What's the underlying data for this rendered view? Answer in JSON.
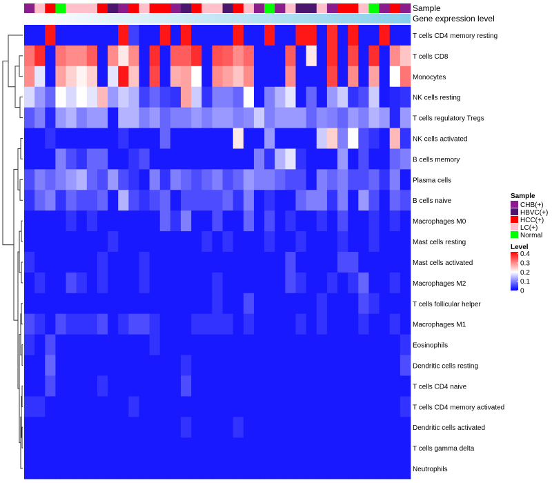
{
  "chart_data": {
    "type": "heatmap",
    "title": "",
    "annotation_tracks": [
      "Sample",
      "Gene expression level"
    ],
    "rows": [
      "T cells CD4 memory resting",
      "T cells CD8",
      "Monocytes",
      "NK cells resting",
      "T cells regulatory  Tregs",
      "NK cells activated",
      "B cells memory",
      "Plasma cells",
      "B cells naive",
      "Macrophages M0",
      "Mast cells resting",
      "Mast cells activated",
      "Macrophages M2",
      "T cells follicular helper",
      "Macrophages M1",
      "Eosinophils",
      "Dendritic cells resting",
      "T cells CD4 naive",
      "T cells CD4 memory activated",
      "Dendritic cells activated",
      "T cells gamma delta",
      "Neutrophils"
    ],
    "sample_groups": [
      "CHB(+)",
      "LC(+)",
      "HCC(+)",
      "Normal",
      "LC(+)",
      "LC(+)",
      "LC(+)",
      "HCC(+)",
      "HBVC(+)",
      "CHB(+)",
      "HCC(+)",
      "LC(+)",
      "HCC(+)",
      "HCC(+)",
      "CHB(+)",
      "HBVC(+)",
      "HCC(+)",
      "LC(+)",
      "LC(+)",
      "HBVC(+)",
      "HCC(+)",
      "LC(+)",
      "CHB(+)",
      "Normal",
      "CHB(+)",
      "LC(+)",
      "HBVC(+)",
      "HBVC(+)",
      "LC(+)",
      "CHB(+)",
      "HCC(+)",
      "HCC(+)",
      "LC(+)",
      "Normal",
      "CHB(+)",
      "HCC(+)",
      "CHB(+)"
    ],
    "values": [
      [
        0.02,
        0.02,
        0.4,
        0.02,
        0.02,
        0.02,
        0.02,
        0.02,
        0.02,
        0.4,
        0.05,
        0.02,
        0.02,
        0.4,
        0.02,
        0.4,
        0.02,
        0.02,
        0.02,
        0.02,
        0.4,
        0.02,
        0.02,
        0.4,
        0.02,
        0.02,
        0.4,
        0.4,
        0.02,
        0.38,
        0.02,
        0.4,
        0.02,
        0.02,
        0.4,
        0.02,
        0.02
      ],
      [
        0.32,
        0.38,
        0.02,
        0.32,
        0.3,
        0.3,
        0.34,
        0.02,
        0.3,
        0.22,
        0.3,
        0.02,
        0.38,
        0.02,
        0.34,
        0.34,
        0.38,
        0.02,
        0.35,
        0.34,
        0.3,
        0.33,
        0.02,
        0.02,
        0.02,
        0.34,
        0.02,
        0.22,
        0.02,
        0.38,
        0.02,
        0.36,
        0.02,
        0.38,
        0.02,
        0.3,
        0.25
      ],
      [
        0.3,
        0.18,
        0.02,
        0.28,
        0.24,
        0.21,
        0.24,
        0.02,
        0.18,
        0.4,
        0.25,
        0.02,
        0.36,
        0.02,
        0.27,
        0.28,
        0.2,
        0.02,
        0.3,
        0.28,
        0.25,
        0.3,
        0.02,
        0.02,
        0.02,
        0.3,
        0.02,
        0.02,
        0.02,
        0.36,
        0.02,
        0.3,
        0.02,
        0.28,
        0.02,
        0.2,
        0.32
      ],
      [
        0.17,
        0.12,
        0.08,
        0.2,
        0.17,
        0.2,
        0.18,
        0.26,
        0.12,
        0.16,
        0.14,
        0.05,
        0.08,
        0.05,
        0.04,
        0.28,
        0.16,
        0.04,
        0.1,
        0.1,
        0.08,
        0.2,
        0.02,
        0.1,
        0.14,
        0.18,
        0.02,
        0.08,
        0.02,
        0.12,
        0.16,
        0.04,
        0.06,
        0.16,
        0.02,
        0.03,
        0.04
      ],
      [
        0.07,
        0.1,
        0.03,
        0.12,
        0.14,
        0.1,
        0.12,
        0.12,
        0.02,
        0.14,
        0.14,
        0.1,
        0.12,
        0.08,
        0.1,
        0.1,
        0.12,
        0.1,
        0.12,
        0.12,
        0.1,
        0.11,
        0.16,
        0.1,
        0.12,
        0.12,
        0.12,
        0.08,
        0.11,
        0.1,
        0.08,
        0.12,
        0.1,
        0.14,
        0.12,
        0.03,
        0.12
      ],
      [
        0.02,
        0.02,
        0.04,
        0.02,
        0.02,
        0.02,
        0.02,
        0.02,
        0.02,
        0.04,
        0.02,
        0.02,
        0.02,
        0.08,
        0.02,
        0.02,
        0.02,
        0.02,
        0.02,
        0.02,
        0.22,
        0.02,
        0.02,
        0.12,
        0.02,
        0.02,
        0.02,
        0.02,
        0.16,
        0.24,
        0.1,
        0.2,
        0.06,
        0.04,
        0.02,
        0.26,
        0.04
      ],
      [
        0.02,
        0.02,
        0.02,
        0.1,
        0.06,
        0.04,
        0.08,
        0.08,
        0.02,
        0.02,
        0.04,
        0.06,
        0.02,
        0.02,
        0.02,
        0.02,
        0.02,
        0.02,
        0.02,
        0.02,
        0.02,
        0.02,
        0.1,
        0.04,
        0.14,
        0.18,
        0.04,
        0.02,
        0.02,
        0.02,
        0.12,
        0.02,
        0.06,
        0.02,
        0.02,
        0.08,
        0.1
      ],
      [
        0.06,
        0.1,
        0.08,
        0.1,
        0.12,
        0.14,
        0.08,
        0.06,
        0.12,
        0.06,
        0.04,
        0.02,
        0.1,
        0.04,
        0.1,
        0.08,
        0.06,
        0.08,
        0.1,
        0.06,
        0.08,
        0.12,
        0.1,
        0.1,
        0.08,
        0.06,
        0.06,
        0.02,
        0.1,
        0.08,
        0.1,
        0.06,
        0.06,
        0.08,
        0.04,
        0.1,
        0.02
      ],
      [
        0.04,
        0.08,
        0.1,
        0.04,
        0.08,
        0.06,
        0.06,
        0.08,
        0.02,
        0.14,
        0.06,
        0.04,
        0.06,
        0.08,
        0.02,
        0.06,
        0.06,
        0.06,
        0.06,
        0.08,
        0.04,
        0.1,
        0.02,
        0.04,
        0.02,
        0.02,
        0.08,
        0.1,
        0.1,
        0.04,
        0.1,
        0.02,
        0.12,
        0.06,
        0.02,
        0.08,
        0.06
      ],
      [
        0.02,
        0.02,
        0.02,
        0.02,
        0.04,
        0.02,
        0.04,
        0.02,
        0.02,
        0.02,
        0.02,
        0.02,
        0.02,
        0.08,
        0.04,
        0.1,
        0.02,
        0.02,
        0.06,
        0.02,
        0.02,
        0.08,
        0.02,
        0.06,
        0.02,
        0.04,
        0.02,
        0.02,
        0.04,
        0.02,
        0.06,
        0.02,
        0.02,
        0.04,
        0.02,
        0.04,
        0.02
      ],
      [
        0.02,
        0.02,
        0.02,
        0.02,
        0.02,
        0.02,
        0.02,
        0.02,
        0.04,
        0.02,
        0.02,
        0.02,
        0.02,
        0.02,
        0.02,
        0.02,
        0.02,
        0.04,
        0.02,
        0.04,
        0.02,
        0.02,
        0.02,
        0.04,
        0.02,
        0.02,
        0.04,
        0.02,
        0.02,
        0.02,
        0.04,
        0.02,
        0.02,
        0.04,
        0.02,
        0.02,
        0.02
      ],
      [
        0.04,
        0.02,
        0.02,
        0.02,
        0.02,
        0.02,
        0.02,
        0.04,
        0.02,
        0.02,
        0.02,
        0.04,
        0.02,
        0.02,
        0.02,
        0.02,
        0.02,
        0.02,
        0.02,
        0.02,
        0.02,
        0.02,
        0.02,
        0.02,
        0.02,
        0.06,
        0.02,
        0.02,
        0.02,
        0.02,
        0.06,
        0.06,
        0.02,
        0.02,
        0.02,
        0.02,
        0.02
      ],
      [
        0.02,
        0.04,
        0.02,
        0.02,
        0.06,
        0.04,
        0.02,
        0.04,
        0.02,
        0.02,
        0.02,
        0.04,
        0.02,
        0.02,
        0.02,
        0.02,
        0.02,
        0.02,
        0.04,
        0.02,
        0.02,
        0.02,
        0.02,
        0.02,
        0.02,
        0.06,
        0.04,
        0.02,
        0.02,
        0.04,
        0.02,
        0.04,
        0.08,
        0.02,
        0.02,
        0.04,
        0.02
      ],
      [
        0.02,
        0.02,
        0.02,
        0.02,
        0.02,
        0.02,
        0.02,
        0.02,
        0.02,
        0.02,
        0.02,
        0.02,
        0.02,
        0.02,
        0.02,
        0.02,
        0.02,
        0.02,
        0.04,
        0.02,
        0.02,
        0.06,
        0.02,
        0.02,
        0.02,
        0.02,
        0.02,
        0.02,
        0.04,
        0.02,
        0.02,
        0.02,
        0.06,
        0.04,
        0.02,
        0.02,
        0.02
      ],
      [
        0.06,
        0.04,
        0.02,
        0.06,
        0.04,
        0.04,
        0.04,
        0.06,
        0.02,
        0.04,
        0.06,
        0.06,
        0.04,
        0.02,
        0.02,
        0.02,
        0.04,
        0.04,
        0.04,
        0.04,
        0.02,
        0.04,
        0.02,
        0.02,
        0.02,
        0.02,
        0.04,
        0.02,
        0.04,
        0.02,
        0.02,
        0.02,
        0.04,
        0.02,
        0.02,
        0.04,
        0.02
      ],
      [
        0.04,
        0.02,
        0.06,
        0.02,
        0.02,
        0.02,
        0.02,
        0.02,
        0.02,
        0.02,
        0.02,
        0.02,
        0.04,
        0.02,
        0.02,
        0.02,
        0.02,
        0.02,
        0.02,
        0.02,
        0.02,
        0.02,
        0.02,
        0.02,
        0.02,
        0.02,
        0.02,
        0.02,
        0.02,
        0.02,
        0.02,
        0.02,
        0.02,
        0.02,
        0.02,
        0.02,
        0.04
      ],
      [
        0.02,
        0.02,
        0.08,
        0.02,
        0.02,
        0.02,
        0.02,
        0.02,
        0.02,
        0.02,
        0.02,
        0.02,
        0.02,
        0.02,
        0.02,
        0.04,
        0.02,
        0.02,
        0.02,
        0.02,
        0.02,
        0.02,
        0.02,
        0.02,
        0.02,
        0.02,
        0.02,
        0.02,
        0.02,
        0.02,
        0.02,
        0.02,
        0.02,
        0.02,
        0.02,
        0.02,
        0.06
      ],
      [
        0.02,
        0.02,
        0.06,
        0.02,
        0.02,
        0.02,
        0.02,
        0.04,
        0.02,
        0.02,
        0.02,
        0.02,
        0.02,
        0.02,
        0.02,
        0.06,
        0.02,
        0.02,
        0.02,
        0.02,
        0.02,
        0.02,
        0.02,
        0.02,
        0.02,
        0.02,
        0.02,
        0.02,
        0.02,
        0.02,
        0.02,
        0.02,
        0.02,
        0.02,
        0.02,
        0.02,
        0.02
      ],
      [
        0.04,
        0.04,
        0.02,
        0.02,
        0.02,
        0.02,
        0.02,
        0.02,
        0.02,
        0.02,
        0.04,
        0.02,
        0.02,
        0.02,
        0.02,
        0.02,
        0.02,
        0.02,
        0.02,
        0.02,
        0.02,
        0.02,
        0.02,
        0.02,
        0.02,
        0.02,
        0.02,
        0.02,
        0.02,
        0.02,
        0.02,
        0.02,
        0.02,
        0.02,
        0.02,
        0.02,
        0.04
      ],
      [
        0.02,
        0.02,
        0.02,
        0.02,
        0.02,
        0.02,
        0.02,
        0.02,
        0.02,
        0.02,
        0.02,
        0.02,
        0.02,
        0.02,
        0.02,
        0.04,
        0.02,
        0.02,
        0.02,
        0.02,
        0.04,
        0.02,
        0.02,
        0.02,
        0.02,
        0.02,
        0.02,
        0.02,
        0.02,
        0.02,
        0.02,
        0.02,
        0.02,
        0.02,
        0.02,
        0.02,
        0.02
      ],
      [
        0.02,
        0.02,
        0.02,
        0.02,
        0.02,
        0.02,
        0.02,
        0.02,
        0.02,
        0.02,
        0.02,
        0.02,
        0.02,
        0.02,
        0.02,
        0.02,
        0.02,
        0.02,
        0.02,
        0.02,
        0.02,
        0.02,
        0.02,
        0.02,
        0.02,
        0.02,
        0.02,
        0.02,
        0.02,
        0.02,
        0.02,
        0.02,
        0.02,
        0.02,
        0.02,
        0.02,
        0.02
      ],
      [
        0.02,
        0.02,
        0.02,
        0.02,
        0.02,
        0.02,
        0.02,
        0.02,
        0.02,
        0.02,
        0.02,
        0.02,
        0.02,
        0.02,
        0.02,
        0.02,
        0.02,
        0.02,
        0.02,
        0.02,
        0.02,
        0.02,
        0.02,
        0.02,
        0.02,
        0.02,
        0.02,
        0.02,
        0.02,
        0.02,
        0.02,
        0.02,
        0.02,
        0.02,
        0.02,
        0.02,
        0.02
      ]
    ],
    "legend_sample": {
      "title": "Sample",
      "entries": [
        {
          "label": "CHB(+)",
          "color": "#8B1C8B"
        },
        {
          "label": "HBVC(+)",
          "color": "#4B176E"
        },
        {
          "label": "HCC(+)",
          "color": "#FF0000"
        },
        {
          "label": "LC(+)",
          "color": "#FFC0CB"
        },
        {
          "label": "Normal",
          "color": "#00FF00"
        }
      ]
    },
    "legend_level": {
      "title": "Level",
      "ticks": [
        {
          "label": "0.4",
          "value": 0.4
        },
        {
          "label": "0.3",
          "value": 0.3
        },
        {
          "label": "0.2",
          "value": 0.2
        },
        {
          "label": "0.1",
          "value": 0.1
        },
        {
          "label": "0",
          "value": 0.0
        }
      ],
      "range": [
        0,
        0.42
      ]
    },
    "color_scale": {
      "low": "#0000FF",
      "mid": "#FFFFFF",
      "high": "#FF0000",
      "mid_value": 0.2
    },
    "expression_bar_gradient": [
      "#FFFFFF",
      "#87CEEB"
    ]
  }
}
